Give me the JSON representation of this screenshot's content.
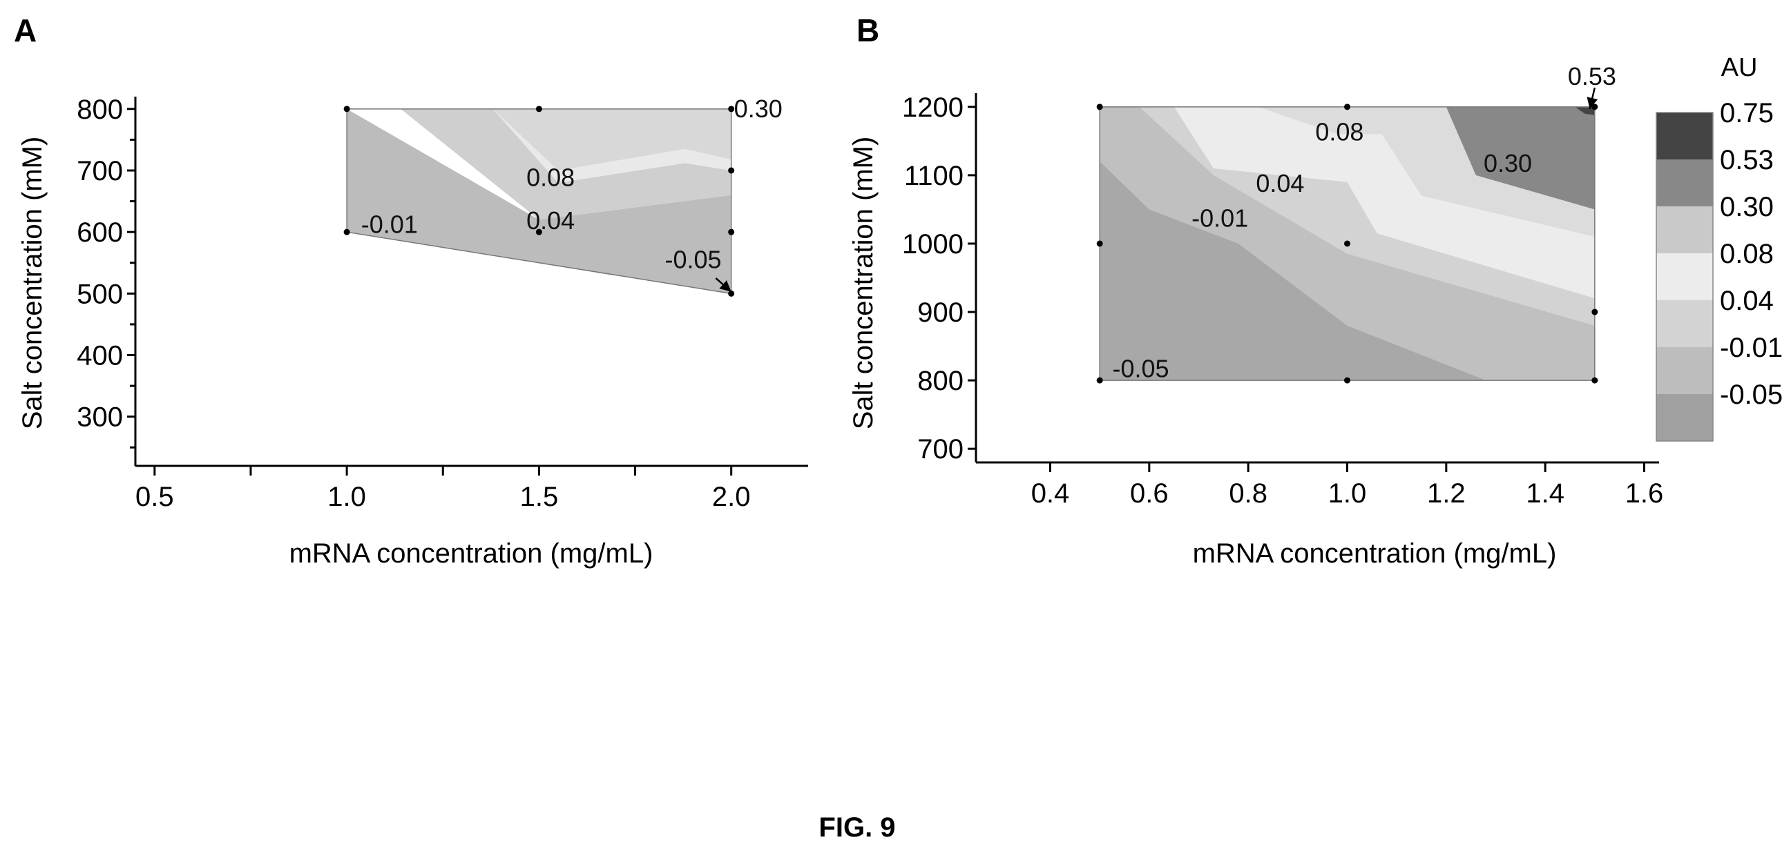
{
  "figure": {
    "caption": "FIG. 9"
  },
  "chart_data": [
    {
      "panel": "A",
      "type": "contour",
      "xlabel": "mRNA concentration (mg/mL)",
      "ylabel": "Salt concentration (mM)",
      "xlim": [
        0.45,
        2.2
      ],
      "ylim": [
        220,
        820
      ],
      "x_ticks": [
        0.5,
        1.0,
        1.5,
        2.0
      ],
      "x_tick_labels": [
        "0.5",
        "1.0",
        "1.5",
        "2.0"
      ],
      "x_minor_ticks": [
        0.75,
        1.25,
        1.75
      ],
      "y_ticks": [
        300,
        400,
        500,
        600,
        700,
        800
      ],
      "y_tick_labels": [
        "300",
        "400",
        "500",
        "600",
        "700",
        "800"
      ],
      "y_minor_ticks": [
        250,
        350,
        450,
        550,
        650,
        750
      ],
      "points": [
        {
          "x": 1.0,
          "y": 800
        },
        {
          "x": 1.5,
          "y": 800
        },
        {
          "x": 2.0,
          "y": 800
        },
        {
          "x": 2.0,
          "y": 700
        },
        {
          "x": 2.0,
          "y": 600
        },
        {
          "x": 2.0,
          "y": 500
        },
        {
          "x": 1.0,
          "y": 600
        },
        {
          "x": 1.5,
          "y": 600
        }
      ],
      "regions": [
        {
          "level": "-0.05",
          "color": "#bcbcbc",
          "polygon": [
            [
              1.0,
              600
            ],
            [
              2.0,
              500
            ],
            [
              2.0,
              660
            ],
            [
              1.5,
              620
            ],
            [
              1.0,
              800
            ]
          ]
        },
        {
          "level": "-0.01",
          "color": "#cfcfcf",
          "polygon": [
            [
              1.0,
              800
            ],
            [
              1.14,
              800
            ],
            [
              1.5,
              620
            ],
            [
              2.0,
              660
            ],
            [
              2.0,
              700
            ],
            [
              1.88,
              712
            ],
            [
              1.55,
              680
            ],
            [
              1.38,
              800
            ]
          ]
        },
        {
          "level": "0.04",
          "color": "#e9e9e9",
          "polygon": [
            [
              1.14,
              800
            ],
            [
              1.38,
              800
            ],
            [
              1.55,
              680
            ],
            [
              1.88,
              712
            ],
            [
              2.0,
              700
            ],
            [
              2.0,
              800
            ]
          ]
        },
        {
          "level": "0.08",
          "color": "#d8d8d8",
          "polygon": [
            [
              1.38,
              800
            ],
            [
              2.0,
              800
            ],
            [
              2.0,
              718
            ],
            [
              1.88,
              735
            ],
            [
              1.55,
              700
            ]
          ]
        }
      ],
      "labels": [
        {
          "text": "0.30",
          "x": 2.0,
          "y": 800
        },
        {
          "text": "0.08",
          "x": 1.46,
          "y": 688
        },
        {
          "text": "0.04",
          "x": 1.46,
          "y": 618
        },
        {
          "text": "-0.01",
          "x": 1.03,
          "y": 612
        },
        {
          "text": "-0.05",
          "x": 1.82,
          "y": 555
        }
      ],
      "arrow": {
        "from": [
          1.96,
          525
        ],
        "to": [
          2.0,
          503
        ]
      }
    },
    {
      "panel": "B",
      "type": "contour",
      "xlabel": "mRNA concentration (mg/mL)",
      "ylabel": "Salt concentration (mM)",
      "xlim": [
        0.25,
        1.63
      ],
      "ylim": [
        680,
        1220
      ],
      "x_ticks": [
        0.4,
        0.6,
        0.8,
        1.0,
        1.2,
        1.4,
        1.6
      ],
      "x_tick_labels": [
        "0.4",
        "0.6",
        "0.8",
        "1.0",
        "1.2",
        "1.4",
        "1.6"
      ],
      "y_ticks": [
        700,
        800,
        900,
        1000,
        1100,
        1200
      ],
      "y_tick_labels": [
        "700",
        "800",
        "900",
        "1000",
        "1100",
        "1200"
      ],
      "points": [
        {
          "x": 0.5,
          "y": 1200
        },
        {
          "x": 1.0,
          "y": 1200
        },
        {
          "x": 1.5,
          "y": 1200
        },
        {
          "x": 0.5,
          "y": 1000
        },
        {
          "x": 1.0,
          "y": 1000
        },
        {
          "x": 1.5,
          "y": 900
        },
        {
          "x": 0.5,
          "y": 800
        },
        {
          "x": 1.0,
          "y": 800
        },
        {
          "x": 1.5,
          "y": 800
        }
      ],
      "regions": [
        {
          "level": "-0.05",
          "color": "#a8a8a8",
          "polygon": [
            [
              0.5,
              800
            ],
            [
              1.5,
              800
            ],
            [
              1.5,
              1200
            ],
            [
              0.5,
              1200
            ]
          ]
        },
        {
          "level": "-0.01",
          "color": "#c0c0c0",
          "polygon": [
            [
              0.5,
              1200
            ],
            [
              0.5,
              1120
            ],
            [
              0.6,
              1050
            ],
            [
              0.78,
              1000
            ],
            [
              1.0,
              880
            ],
            [
              1.28,
              800
            ],
            [
              1.5,
              800
            ],
            [
              1.5,
              1200
            ]
          ]
        },
        {
          "level": "0.04",
          "color": "#d3d3d3",
          "polygon": [
            [
              0.58,
              1200
            ],
            [
              0.73,
              1100
            ],
            [
              1.0,
              985
            ],
            [
              1.5,
              880
            ],
            [
              1.5,
              1200
            ]
          ]
        },
        {
          "level": "0.08",
          "color": "#ececec",
          "polygon": [
            [
              0.65,
              1200
            ],
            [
              0.73,
              1110
            ],
            [
              1.0,
              1090
            ],
            [
              1.06,
              1015
            ],
            [
              1.5,
              920
            ],
            [
              1.5,
              1200
            ]
          ]
        },
        {
          "level": "0.30",
          "color": "#dcdcdc",
          "polygon": [
            [
              0.82,
              1200
            ],
            [
              0.98,
              1160
            ],
            [
              1.07,
              1160
            ],
            [
              1.15,
              1070
            ],
            [
              1.5,
              1010
            ],
            [
              1.5,
              1200
            ]
          ]
        },
        {
          "level": "0.53",
          "color": "#888888",
          "polygon": [
            [
              1.2,
              1200
            ],
            [
              1.26,
              1100
            ],
            [
              1.5,
              1050
            ],
            [
              1.5,
              1200
            ]
          ]
        },
        {
          "level": "0.75",
          "color": "#444444",
          "polygon": [
            [
              1.46,
              1200
            ],
            [
              1.48,
              1190
            ],
            [
              1.5,
              1188
            ],
            [
              1.5,
              1200
            ]
          ]
        }
      ],
      "labels": [
        {
          "text": "0.08",
          "x": 0.93,
          "y": 1163
        },
        {
          "text": "0.30",
          "x": 1.27,
          "y": 1117
        },
        {
          "text": "0.04",
          "x": 0.81,
          "y": 1088
        },
        {
          "text": "-0.01",
          "x": 0.68,
          "y": 1037
        },
        {
          "text": "-0.05",
          "x": 0.52,
          "y": 817
        },
        {
          "text": "0.53",
          "x": 1.44,
          "y": 1244
        }
      ],
      "arrow": {
        "from": [
          1.5,
          1228
        ],
        "to": [
          1.49,
          1197
        ]
      },
      "colorbar": {
        "title": "AU",
        "levels": [
          "0.75",
          "0.53",
          "0.30",
          "0.08",
          "0.04",
          "-0.01",
          "-0.05"
        ],
        "colors": [
          "#444444",
          "#888888",
          "#c9c9c9",
          "#ececec",
          "#d3d3d3",
          "#bdbdbd",
          "#a0a0a0"
        ]
      }
    }
  ]
}
